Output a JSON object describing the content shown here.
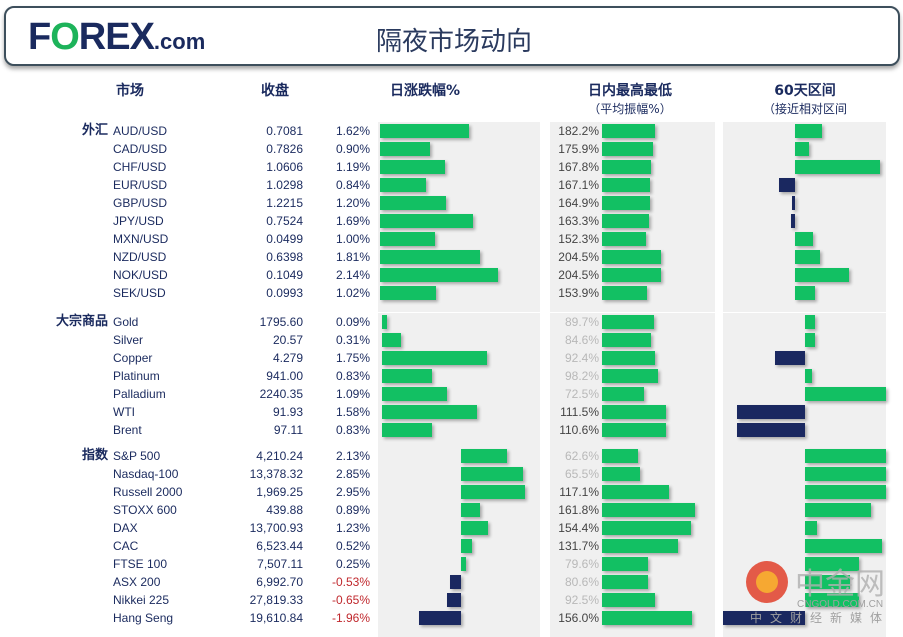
{
  "header": {
    "logo": "FOREX.com",
    "title": "隔夜市场动向"
  },
  "columns": {
    "market": "市场",
    "close": "收盘",
    "change": "日涨跌幅%",
    "range": "日内最高最低",
    "range_sub": "（平均振幅%）",
    "sixty": "60天区间",
    "sixty_sub": "（接近相对区间"
  },
  "colors": {
    "up": "#12c063",
    "down": "#1a2860",
    "neg_text": "#c0282d",
    "dim_text": "#b8b8b8"
  },
  "groups": [
    {
      "label": "外汇",
      "rows": [
        {
          "name": "AUD/USD",
          "close": "0.7081",
          "change": "1.62%",
          "chg": 1.62,
          "range": "182.2%",
          "rng": 182.2,
          "sixty": 0.3
        },
        {
          "name": "CAD/USD",
          "close": "0.7826",
          "change": "0.90%",
          "chg": 0.9,
          "range": "175.9%",
          "rng": 175.9,
          "sixty": 0.15
        },
        {
          "name": "CHF/USD",
          "close": "1.0606",
          "change": "1.19%",
          "chg": 1.19,
          "range": "167.8%",
          "rng": 167.8,
          "sixty": 0.93
        },
        {
          "name": "EUR/USD",
          "close": "1.0298",
          "change": "0.84%",
          "chg": 0.84,
          "range": "167.1%",
          "rng": 167.1,
          "sixty": -0.22
        },
        {
          "name": "GBP/USD",
          "close": "1.2215",
          "change": "1.20%",
          "chg": 1.2,
          "range": "164.9%",
          "rng": 164.9,
          "sixty": -0.03
        },
        {
          "name": "JPY/USD",
          "close": "0.7524",
          "change": "1.69%",
          "chg": 1.69,
          "range": "163.3%",
          "rng": 163.3,
          "sixty": -0.06
        },
        {
          "name": "MXN/USD",
          "close": "0.0499",
          "change": "1.00%",
          "chg": 1.0,
          "range": "152.3%",
          "rng": 152.3,
          "sixty": 0.2
        },
        {
          "name": "NZD/USD",
          "close": "0.6398",
          "change": "1.81%",
          "chg": 1.81,
          "range": "204.5%",
          "rng": 204.5,
          "sixty": 0.28
        },
        {
          "name": "NOK/USD",
          "close": "0.1049",
          "change": "2.14%",
          "chg": 2.14,
          "range": "204.5%",
          "rng": 204.5,
          "sixty": 0.59
        },
        {
          "name": "SEK/USD",
          "close": "0.0993",
          "change": "1.02%",
          "chg": 1.02,
          "range": "153.9%",
          "rng": 153.9,
          "sixty": 0.22
        }
      ]
    },
    {
      "label": "大宗商品",
      "rows": [
        {
          "name": "Gold",
          "close": "1795.60",
          "change": "0.09%",
          "chg": 0.09,
          "range": "89.7%",
          "rng": 89.7,
          "sixty": 0.12
        },
        {
          "name": "Silver",
          "close": "20.57",
          "change": "0.31%",
          "chg": 0.31,
          "range": "84.6%",
          "rng": 84.6,
          "sixty": 0.12
        },
        {
          "name": "Copper",
          "close": "4.279",
          "change": "1.75%",
          "chg": 1.75,
          "range": "92.4%",
          "rng": 92.4,
          "sixty": -0.36
        },
        {
          "name": "Platinum",
          "close": "941.00",
          "change": "0.83%",
          "chg": 0.83,
          "range": "98.2%",
          "rng": 98.2,
          "sixty": 0.09
        },
        {
          "name": "Palladium",
          "close": "2240.35",
          "change": "1.09%",
          "chg": 1.09,
          "range": "72.5%",
          "rng": 72.5,
          "sixty": 1.0
        },
        {
          "name": "WTI",
          "close": "91.93",
          "change": "1.58%",
          "chg": 1.58,
          "range": "111.5%",
          "rng": 111.5,
          "sixty": -0.83
        },
        {
          "name": "Brent",
          "close": "97.11",
          "change": "0.83%",
          "chg": 0.83,
          "range": "110.6%",
          "rng": 110.6,
          "sixty": -0.83
        }
      ]
    },
    {
      "label": "指数",
      "rows": [
        {
          "name": "S&P 500",
          "close": "4,210.24",
          "change": "2.13%",
          "chg": 2.13,
          "range": "62.6%",
          "rng": 62.6,
          "sixty": 1.0
        },
        {
          "name": "Nasdaq-100",
          "close": "13,378.32",
          "change": "2.85%",
          "chg": 2.85,
          "range": "65.5%",
          "rng": 65.5,
          "sixty": 1.0
        },
        {
          "name": "Russell 2000",
          "close": "1,969.25",
          "change": "2.95%",
          "chg": 2.95,
          "range": "117.1%",
          "rng": 117.1,
          "sixty": 1.0
        },
        {
          "name": "STOXX 600",
          "close": "439.88",
          "change": "0.89%",
          "chg": 0.89,
          "range": "161.8%",
          "rng": 161.8,
          "sixty": 0.81
        },
        {
          "name": "DAX",
          "close": "13,700.93",
          "change": "1.23%",
          "chg": 1.23,
          "range": "154.4%",
          "rng": 154.4,
          "sixty": 0.15
        },
        {
          "name": "CAC",
          "close": "6,523.44",
          "change": "0.52%",
          "chg": 0.52,
          "range": "131.7%",
          "rng": 131.7,
          "sixty": 0.95
        },
        {
          "name": "FTSE 100",
          "close": "7,507.11",
          "change": "0.25%",
          "chg": 0.25,
          "range": "79.6%",
          "rng": 79.6,
          "sixty": 0.67
        },
        {
          "name": "ASX 200",
          "close": "6,992.70",
          "change": "-0.53%",
          "chg": -0.53,
          "range": "80.6%",
          "rng": 80.6,
          "sixty": 0.55
        },
        {
          "name": "Nikkei 225",
          "close": "27,819.33",
          "change": "-0.65%",
          "chg": -0.65,
          "range": "92.5%",
          "rng": 92.5,
          "sixty": 0.67
        },
        {
          "name": "Hang Seng",
          "close": "19,610.84",
          "change": "-1.96%",
          "chg": -1.96,
          "range": "156.0%",
          "rng": 156.0,
          "sixty": -1.0
        }
      ]
    }
  ],
  "watermark": {
    "brand": "中金网",
    "domain": "CNGOLD.COM.CN",
    "tagline": "中文财经新媒体"
  }
}
